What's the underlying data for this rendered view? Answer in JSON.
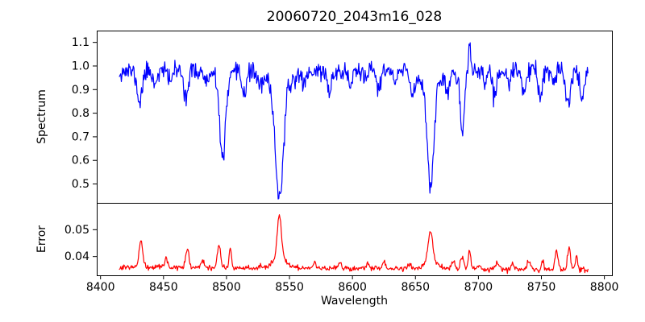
{
  "title": "20060720_2043m16_028",
  "colors": {
    "spectrum_line": "#0000ff",
    "error_line": "#ff0000",
    "axis": "#000000",
    "background": "#ffffff"
  },
  "axes": {
    "x": {
      "label": "Wavelength",
      "min": 8397,
      "max": 8806,
      "ticks": [
        8400,
        8450,
        8500,
        8550,
        8600,
        8650,
        8700,
        8750,
        8800
      ],
      "tick_labels": [
        "8400",
        "8450",
        "8500",
        "8550",
        "8600",
        "8650",
        "8700",
        "8750",
        "8800"
      ]
    },
    "spectrum": {
      "ylabel": "Spectrum",
      "min": 0.42,
      "max": 1.15,
      "ticks": [
        0.5,
        0.6,
        0.7,
        0.8,
        0.9,
        1.0,
        1.1
      ],
      "tick_labels": [
        "0.5",
        "0.6",
        "0.7",
        "0.8",
        "0.9",
        "1.0",
        "1.1"
      ]
    },
    "error": {
      "ylabel": "Error",
      "min": 0.033,
      "max": 0.06,
      "ticks": [
        0.04,
        0.05
      ],
      "tick_labels": [
        "0.04",
        "0.05"
      ]
    }
  },
  "chart_data": {
    "type": "line",
    "title": "20060720_2043m16_028",
    "xlabel": "Wavelength",
    "x_range": [
      8415,
      8787
    ],
    "x_step": 0.5,
    "noise_seed": 11,
    "legend": "none",
    "grid": false,
    "series": [
      {
        "name": "spectrum",
        "panel": "spectrum",
        "color": "#0000ff",
        "continuum": 0.978,
        "noise_sigma": 0.02,
        "features": [
          {
            "center": 8431,
            "amplitude": -0.13,
            "sigma": 2.0
          },
          {
            "center": 8443,
            "amplitude": -0.05,
            "sigma": 1.5
          },
          {
            "center": 8455,
            "amplitude": -0.04,
            "sigma": 1.4
          },
          {
            "center": 8468,
            "amplitude": -0.1,
            "sigma": 1.8
          },
          {
            "center": 8484,
            "amplitude": -0.05,
            "sigma": 1.5
          },
          {
            "center": 8497,
            "amplitude": -0.32,
            "sigma": 2.2
          },
          {
            "center": 8497,
            "amplitude": -0.05,
            "sigma": 6.0
          },
          {
            "center": 8514,
            "amplitude": -0.09,
            "sigma": 1.7
          },
          {
            "center": 8527,
            "amplitude": -0.05,
            "sigma": 1.5
          },
          {
            "center": 8542,
            "amplitude": -0.46,
            "sigma": 3.0
          },
          {
            "center": 8542,
            "amplitude": -0.08,
            "sigma": 9.0
          },
          {
            "center": 8562,
            "amplitude": -0.04,
            "sigma": 1.5
          },
          {
            "center": 8582,
            "amplitude": -0.085,
            "sigma": 1.8
          },
          {
            "center": 8598,
            "amplitude": -0.06,
            "sigma": 1.6
          },
          {
            "center": 8611,
            "amplitude": -0.045,
            "sigma": 1.4
          },
          {
            "center": 8621,
            "amplitude": -0.07,
            "sigma": 1.6
          },
          {
            "center": 8634,
            "amplitude": -0.05,
            "sigma": 1.5
          },
          {
            "center": 8648,
            "amplitude": -0.09,
            "sigma": 1.8
          },
          {
            "center": 8662,
            "amplitude": -0.42,
            "sigma": 2.5
          },
          {
            "center": 8662,
            "amplitude": -0.065,
            "sigma": 7.0
          },
          {
            "center": 8675,
            "amplitude": -0.1,
            "sigma": 1.6
          },
          {
            "center": 8687,
            "amplitude": -0.27,
            "sigma": 1.8
          },
          {
            "center": 8693,
            "amplitude": 0.13,
            "sigma": 0.9
          },
          {
            "center": 8705,
            "amplitude": -0.05,
            "sigma": 1.4
          },
          {
            "center": 8713,
            "amplitude": -0.1,
            "sigma": 1.6
          },
          {
            "center": 8724,
            "amplitude": -0.06,
            "sigma": 1.5
          },
          {
            "center": 8736,
            "amplitude": -0.08,
            "sigma": 1.6
          },
          {
            "center": 8749,
            "amplitude": -0.11,
            "sigma": 1.7
          },
          {
            "center": 8760,
            "amplitude": -0.06,
            "sigma": 1.5
          },
          {
            "center": 8771,
            "amplitude": -0.14,
            "sigma": 1.8
          },
          {
            "center": 8782,
            "amplitude": -0.12,
            "sigma": 1.6
          }
        ]
      },
      {
        "name": "error",
        "panel": "error",
        "color": "#ff0000",
        "baseline_start": 0.0362,
        "baseline_end": 0.035,
        "noise_sigma": 0.0005,
        "features": [
          {
            "center": 8432,
            "amplitude": 0.0105,
            "sigma": 1.3
          },
          {
            "center": 8452,
            "amplitude": 0.003,
            "sigma": 1.2
          },
          {
            "center": 8469,
            "amplitude": 0.0068,
            "sigma": 1.3
          },
          {
            "center": 8481,
            "amplitude": 0.0028,
            "sigma": 1.2
          },
          {
            "center": 8494,
            "amplitude": 0.0085,
            "sigma": 1.2
          },
          {
            "center": 8503,
            "amplitude": 0.007,
            "sigma": 0.9
          },
          {
            "center": 8542,
            "amplitude": 0.016,
            "sigma": 1.6
          },
          {
            "center": 8542,
            "amplitude": 0.004,
            "sigma": 5.0
          },
          {
            "center": 8570,
            "amplitude": 0.002,
            "sigma": 1.2
          },
          {
            "center": 8590,
            "amplitude": 0.002,
            "sigma": 1.2
          },
          {
            "center": 8612,
            "amplitude": 0.0022,
            "sigma": 1.2
          },
          {
            "center": 8625,
            "amplitude": 0.0025,
            "sigma": 1.2
          },
          {
            "center": 8645,
            "amplitude": 0.002,
            "sigma": 1.2
          },
          {
            "center": 8662,
            "amplitude": 0.011,
            "sigma": 1.8
          },
          {
            "center": 8662,
            "amplitude": 0.003,
            "sigma": 5.0
          },
          {
            "center": 8680,
            "amplitude": 0.003,
            "sigma": 1.2
          },
          {
            "center": 8687,
            "amplitude": 0.0045,
            "sigma": 1.2
          },
          {
            "center": 8693,
            "amplitude": 0.0065,
            "sigma": 1.0
          },
          {
            "center": 8700,
            "amplitude": 0.002,
            "sigma": 1.0
          },
          {
            "center": 8715,
            "amplitude": 0.0025,
            "sigma": 1.2
          },
          {
            "center": 8727,
            "amplitude": 0.002,
            "sigma": 1.2
          },
          {
            "center": 8740,
            "amplitude": 0.0035,
            "sigma": 1.3
          },
          {
            "center": 8751,
            "amplitude": 0.003,
            "sigma": 1.1
          },
          {
            "center": 8762,
            "amplitude": 0.0075,
            "sigma": 1.2
          },
          {
            "center": 8772,
            "amplitude": 0.0085,
            "sigma": 1.2
          },
          {
            "center": 8778,
            "amplitude": 0.005,
            "sigma": 1.0
          }
        ]
      }
    ]
  }
}
